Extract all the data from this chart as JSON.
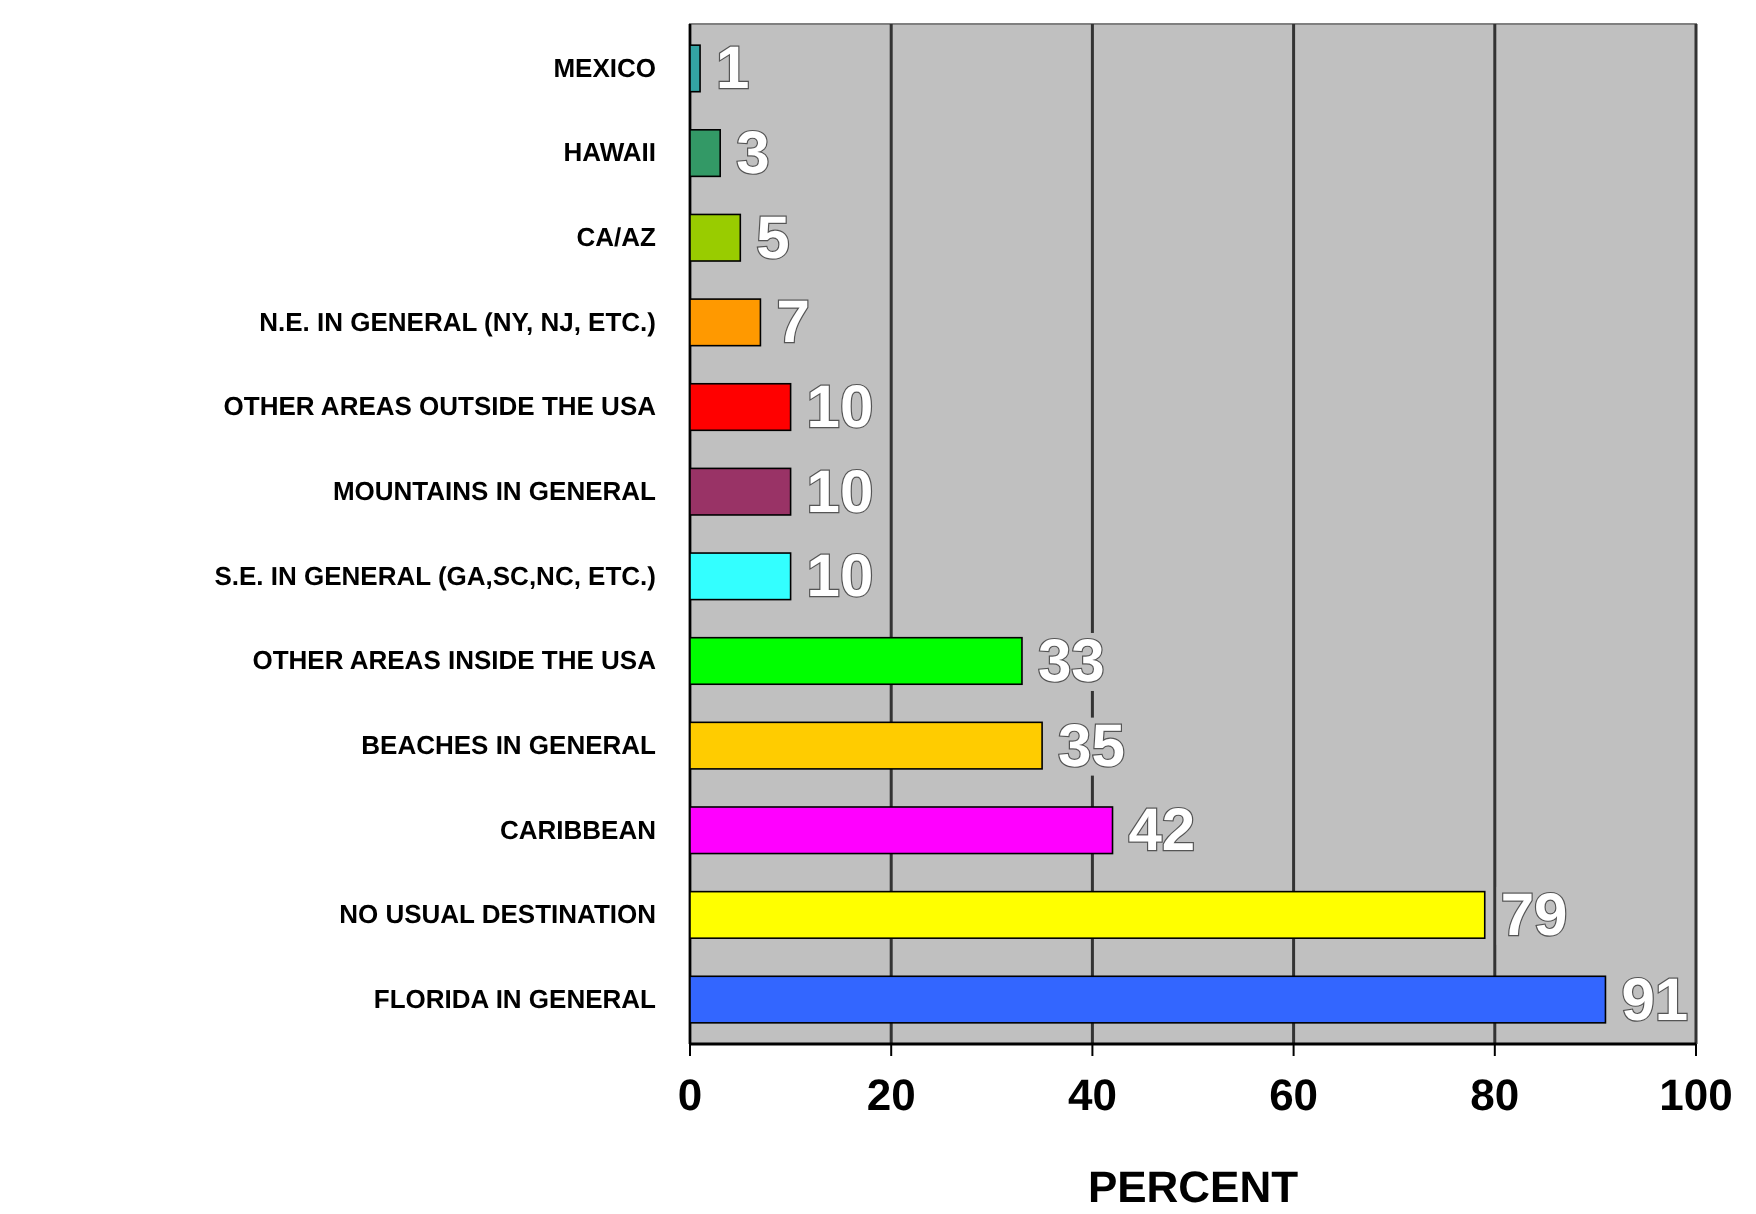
{
  "chart_data": {
    "type": "bar",
    "orientation": "horizontal",
    "xlabel": "PERCENT",
    "categories": [
      "MEXICO",
      "HAWAII",
      "CA/AZ",
      "N.E. IN GENERAL (NY, NJ, ETC.)",
      "OTHER AREAS OUTSIDE THE USA",
      "MOUNTAINS IN GENERAL",
      "S.E. IN GENERAL (GA,SC,NC, ETC.)",
      "OTHER AREAS INSIDE THE USA",
      "BEACHES IN GENERAL",
      "CARIBBEAN",
      "NO USUAL DESTINATION",
      "FLORIDA IN GENERAL"
    ],
    "values": [
      1,
      3,
      5,
      7,
      10,
      10,
      10,
      33,
      35,
      42,
      79,
      91
    ],
    "colors": [
      "#33a3a3",
      "#339966",
      "#99cc00",
      "#ff9900",
      "#ff0000",
      "#993366",
      "#33ffff",
      "#00ff00",
      "#ffcc00",
      "#ff00ff",
      "#ffff00",
      "#3366ff"
    ],
    "xlim": [
      0,
      100
    ],
    "xticks": [
      0,
      20,
      40,
      60,
      80,
      100
    ],
    "grid": "x",
    "data_labels": true
  }
}
